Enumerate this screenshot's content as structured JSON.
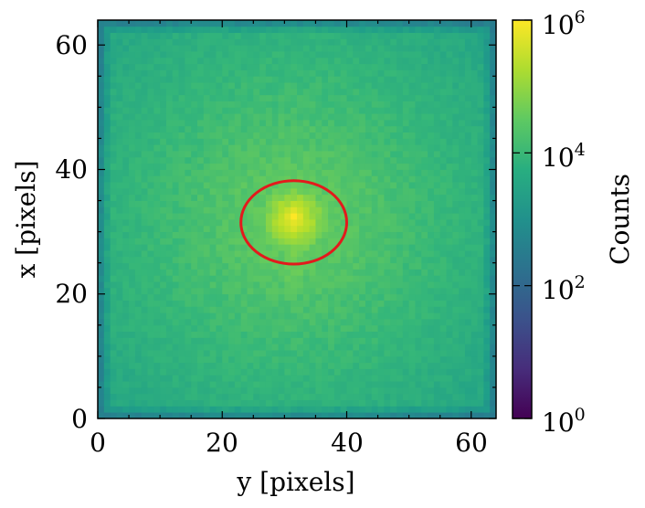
{
  "chart_data": {
    "type": "heatmap",
    "xlabel": "y [pixels]",
    "ylabel": "x [pixels]",
    "xlim": [
      0,
      64
    ],
    "ylim": [
      0,
      64
    ],
    "xticks": [
      "0",
      "20",
      "40",
      "60"
    ],
    "yticks": [
      "0",
      "20",
      "40",
      "60"
    ],
    "grid": 64,
    "colormap": "viridis",
    "scale": "log",
    "colorbar": {
      "label": "Counts",
      "range": [
        1,
        1000000
      ],
      "ticks": [
        {
          "base": "10",
          "exp": "0",
          "value": 1
        },
        {
          "base": "10",
          "exp": "2",
          "value": 100
        },
        {
          "base": "10",
          "exp": "4",
          "value": 10000
        },
        {
          "base": "10",
          "exp": "6",
          "value": 1000000
        }
      ]
    },
    "peak": {
      "y": 31.5,
      "x": 32,
      "counts": 700000
    },
    "annotation": {
      "shape": "ellipse",
      "color": "#e31a1c",
      "center_y": 31.5,
      "center_x": 31.5,
      "radius_y": 8.5,
      "radius_x": 6.7
    }
  }
}
